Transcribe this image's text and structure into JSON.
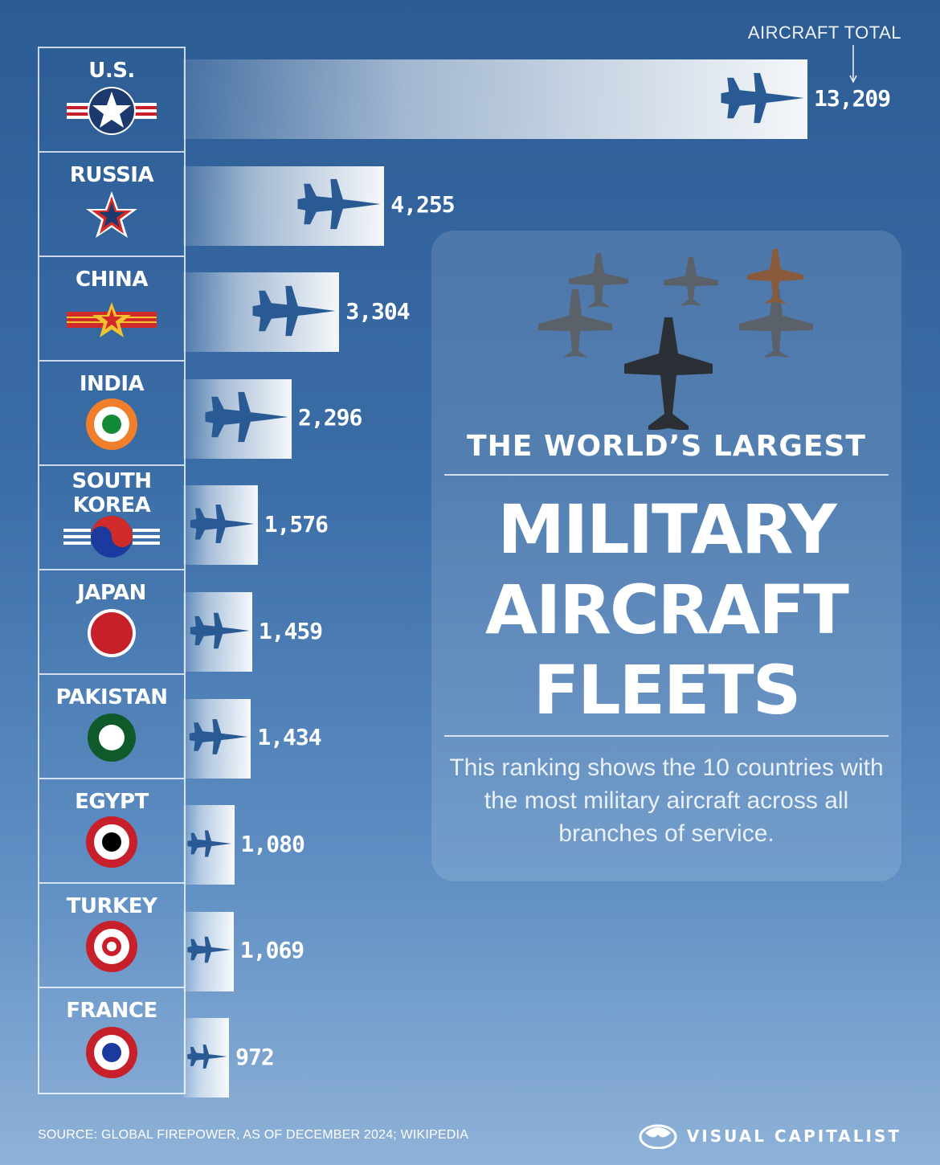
{
  "header": {
    "total_label": "AIRCRAFT  TOTAL"
  },
  "colors": {
    "plane": "#2a5a94",
    "bar_end": "#ffffff"
  },
  "chart_data": {
    "type": "bar",
    "orientation": "horizontal",
    "categories": [
      "U.S.",
      "RUSSIA",
      "CHINA",
      "INDIA",
      "SOUTH KOREA",
      "JAPAN",
      "PAKISTAN",
      "EGYPT",
      "TURKEY",
      "FRANCE"
    ],
    "values": [
      13209,
      4255,
      3304,
      2296,
      1576,
      1459,
      1434,
      1080,
      1069,
      972
    ],
    "value_labels": [
      "13,209",
      "4,255",
      "3,304",
      "2,296",
      "1,576",
      "1,459",
      "1,434",
      "1,080",
      "1,069",
      "972"
    ],
    "title": "",
    "xlabel": "",
    "ylabel": "",
    "grid": false
  },
  "countries": [
    {
      "name": "U.S.",
      "flag": "us-roundel"
    },
    {
      "name": "RUSSIA",
      "flag": "russia-star"
    },
    {
      "name": "CHINA",
      "flag": "china-roundel"
    },
    {
      "name": "INDIA",
      "flag": "india-roundel"
    },
    {
      "name": "SOUTH\nKOREA",
      "flag": "korea-roundel"
    },
    {
      "name": "JAPAN",
      "flag": "japan-roundel"
    },
    {
      "name": "PAKISTAN",
      "flag": "pakistan-roundel"
    },
    {
      "name": "EGYPT",
      "flag": "egypt-roundel"
    },
    {
      "name": "TURKEY",
      "flag": "turkey-roundel"
    },
    {
      "name": "FRANCE",
      "flag": "france-roundel"
    }
  ],
  "panel": {
    "kicker": "THE WORLD’S LARGEST",
    "title_lines": [
      "MILITARY",
      "AIRCRAFT",
      "FLEETS"
    ],
    "description": "This ranking shows the 10 countries with the most military aircraft across all branches of service."
  },
  "footer": {
    "source": "SOURCE: GLOBAL FIREPOWER, AS OF DECEMBER 2024; WIKIPEDIA",
    "brand": "VISUAL CAPITALIST"
  }
}
